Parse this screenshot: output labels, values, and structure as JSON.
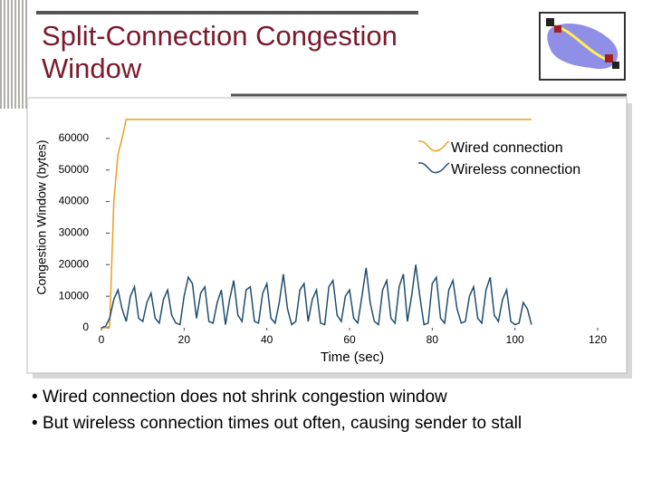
{
  "slide": {
    "title": "Split-Connection Congestion Window",
    "bullets": [
      "Wired connection does not shrink congestion window",
      "But wireless connection times out often, causing sender to stall"
    ]
  },
  "chart_data": {
    "type": "line",
    "x_label": "Time (sec)",
    "y_label": "Congestion Window (bytes)",
    "x": [
      0,
      1,
      2,
      3,
      4,
      5,
      6,
      7,
      8,
      9,
      10,
      11,
      12,
      13,
      14,
      15,
      16,
      17,
      18,
      19,
      20,
      21,
      22,
      23,
      24,
      25,
      26,
      27,
      28,
      29,
      30,
      31,
      32,
      33,
      34,
      35,
      36,
      37,
      38,
      39,
      40,
      41,
      42,
      43,
      44,
      45,
      46,
      47,
      48,
      49,
      50,
      51,
      52,
      53,
      54,
      55,
      56,
      57,
      58,
      59,
      60,
      61,
      62,
      63,
      64,
      65,
      66,
      67,
      68,
      69,
      70,
      71,
      72,
      73,
      74,
      75,
      76,
      77,
      78,
      79,
      80,
      81,
      82,
      83,
      84,
      85,
      86,
      87,
      88,
      89,
      90,
      91,
      92,
      93,
      94,
      95,
      96,
      97,
      98,
      99,
      100,
      101,
      102,
      103,
      104
    ],
    "series": [
      {
        "name": "Wired connection",
        "color": "#e8a020",
        "values": [
          0,
          0,
          500,
          40000,
          55000,
          60000,
          66000,
          66000,
          66000,
          66000,
          66000,
          66000,
          66000,
          66000,
          66000,
          66000,
          66000,
          66000,
          66000,
          66000,
          66000,
          66000,
          66000,
          66000,
          66000,
          66000,
          66000,
          66000,
          66000,
          66000,
          66000,
          66000,
          66000,
          66000,
          66000,
          66000,
          66000,
          66000,
          66000,
          66000,
          66000,
          66000,
          66000,
          66000,
          66000,
          66000,
          66000,
          66000,
          66000,
          66000,
          66000,
          66000,
          66000,
          66000,
          66000,
          66000,
          66000,
          66000,
          66000,
          66000,
          66000,
          66000,
          66000,
          66000,
          66000,
          66000,
          66000,
          66000,
          66000,
          66000,
          66000,
          66000,
          66000,
          66000,
          66000,
          66000,
          66000,
          66000,
          66000,
          66000,
          66000,
          66000,
          66000,
          66000,
          66000,
          66000,
          66000,
          66000,
          66000,
          66000,
          66000,
          66000,
          66000,
          66000,
          66000,
          66000,
          66000,
          66000,
          66000,
          66000,
          66000,
          66000,
          66000,
          66000,
          66000
        ]
      },
      {
        "name": "Wireless connection",
        "color": "#1f4e6e",
        "values": [
          0,
          500,
          3000,
          9000,
          12000,
          6000,
          2000,
          10000,
          13000,
          3000,
          2000,
          8000,
          11000,
          3000,
          1500,
          9000,
          12000,
          4000,
          1500,
          1000,
          10000,
          16000,
          14000,
          3000,
          11000,
          13000,
          2000,
          1500,
          8000,
          12000,
          1000,
          9000,
          15000,
          4000,
          2000,
          12000,
          13000,
          2000,
          1500,
          11000,
          14000,
          3000,
          1500,
          8000,
          17000,
          6000,
          1000,
          2000,
          12000,
          14000,
          2000,
          9000,
          12000,
          1500,
          1000,
          13000,
          15000,
          4000,
          2000,
          10000,
          12000,
          3000,
          1500,
          10000,
          19000,
          8000,
          2000,
          1000,
          12000,
          15000,
          3000,
          1500,
          13000,
          17000,
          2000,
          10000,
          20000,
          10000,
          1000,
          1500,
          14000,
          16000,
          3000,
          1500,
          12000,
          15000,
          6000,
          1500,
          2000,
          10000,
          13000,
          3000,
          1500,
          12000,
          16000,
          4000,
          2000,
          9000,
          12000,
          2000,
          1000,
          1500,
          8000,
          6000,
          1000
        ]
      }
    ],
    "xlim": [
      0,
      120
    ],
    "xticks": [
      0,
      20,
      40,
      60,
      80,
      100,
      120
    ],
    "ylim": [
      0,
      70000
    ],
    "yticks": [
      0,
      10000,
      20000,
      30000,
      40000,
      50000,
      60000
    ],
    "legend": "upper right"
  }
}
